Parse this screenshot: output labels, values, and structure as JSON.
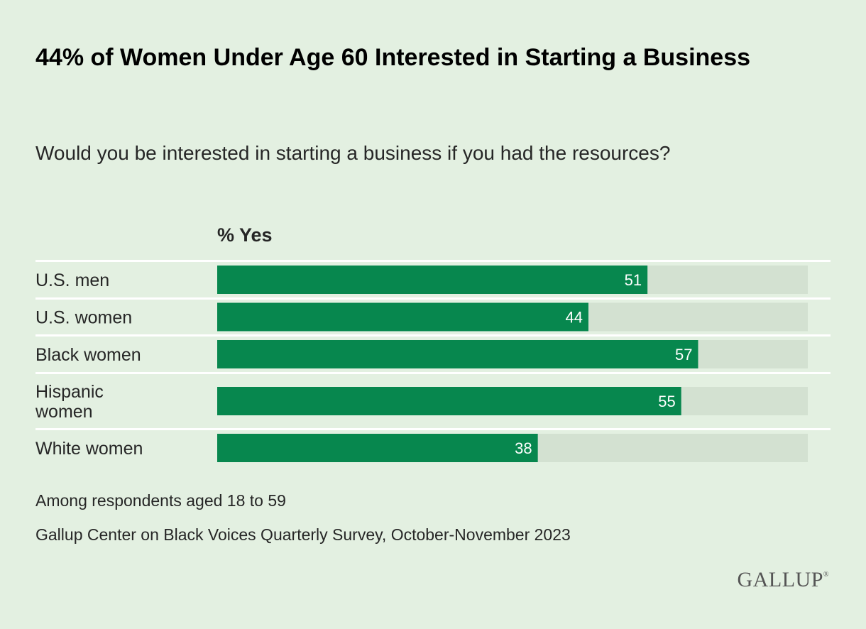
{
  "title": "44% of Women Under Age 60 Interested in Starting a Business",
  "subtitle": "Would you be interested in starting a business if you had the resources?",
  "notes": [
    "Among respondents aged 18 to 59",
    "Gallup Center on Black Voices Quarterly Survey, October-November 2023"
  ],
  "logo": "GALLUP",
  "colors": {
    "background": "#e3f0e1",
    "bar": "#07874e",
    "track": "#d3e1d1",
    "separator": "#ffffff"
  },
  "chart_data": {
    "type": "bar",
    "orientation": "horizontal",
    "column_header": "% Yes",
    "categories": [
      [
        "U.S. men"
      ],
      [
        "U.S. women"
      ],
      [
        "Black women"
      ],
      [
        "Hispanic",
        "women"
      ],
      [
        "White women"
      ]
    ],
    "values": [
      51,
      44,
      57,
      55,
      38
    ],
    "xlim": [
      0,
      70
    ],
    "grid": false,
    "data_labels": true
  }
}
